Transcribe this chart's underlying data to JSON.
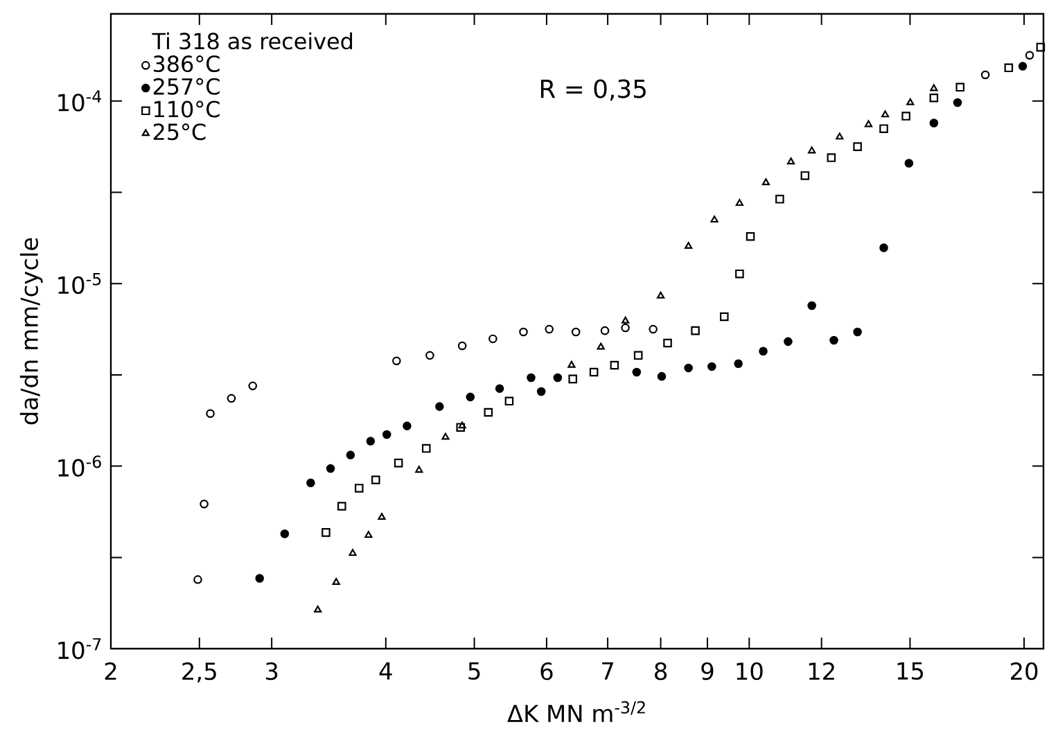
{
  "chart_data": {
    "type": "scatter",
    "log": "xy",
    "legend": "top left",
    "legend_title": "Ti 318 as received",
    "annotations": [
      "R = 0,35"
    ],
    "xlabel": "ΔK MN m$^{-3/2}$",
    "ylabel": "da/dn mm/cycle",
    "xlim": [
      2,
      21
    ],
    "ylim": [
      1e-07,
      0.0003
    ],
    "xticks": [
      2,
      {
        "value": 2.5,
        "label": "2,5"
      },
      3,
      4,
      5,
      6,
      7,
      8,
      9,
      10,
      12,
      15,
      20
    ],
    "yticks": [
      {
        "value": 1e-07,
        "label": "10$^{-7}$"
      },
      {
        "value": 3.16e-07,
        "label": null
      },
      {
        "value": 1e-06,
        "label": "10$^{-6}$"
      },
      {
        "value": 3.16e-06,
        "label": null
      },
      {
        "value": 1e-05,
        "label": "10$^{-5}$"
      },
      {
        "value": 3.16e-05,
        "label": null
      },
      {
        "value": 0.0001,
        "label": "10$^{-4}$"
      }
    ],
    "series": [
      {
        "name": "386°C",
        "color": "#000000",
        "marker": "circle",
        "x": [
          2.49,
          2.53,
          2.57,
          2.71,
          2.86,
          4.11,
          4.47,
          4.85,
          5.24,
          5.66,
          6.04,
          6.46,
          6.95,
          7.32,
          7.85,
          18.14,
          20.28
        ],
        "values": [
          2.39e-07,
          6.2e-07,
          1.94e-06,
          2.35e-06,
          2.75e-06,
          3.77e-06,
          4.04e-06,
          4.56e-06,
          4.98e-06,
          5.43e-06,
          5.62e-06,
          5.43e-06,
          5.52e-06,
          5.72e-06,
          5.62e-06,
          0.000139,
          0.000178
        ]
      },
      {
        "name": "257°C",
        "color": "#000000",
        "marker": "filled circle",
        "x": [
          2.91,
          3.1,
          3.31,
          3.48,
          3.66,
          3.85,
          4.01,
          4.22,
          4.58,
          4.95,
          5.33,
          5.77,
          5.92,
          6.17,
          7.53,
          8.02,
          8.58,
          9.1,
          9.73,
          10.36,
          11.03,
          11.71,
          12.38,
          13.14,
          14.04,
          14.96,
          15.93,
          16.91,
          19.93
        ],
        "values": [
          2.43e-07,
          4.26e-07,
          8.1e-07,
          9.7e-07,
          1.15e-06,
          1.37e-06,
          1.49e-06,
          1.66e-06,
          2.12e-06,
          2.39e-06,
          2.66e-06,
          3.05e-06,
          2.56e-06,
          3.05e-06,
          3.27e-06,
          3.1e-06,
          3.45e-06,
          3.51e-06,
          3.64e-06,
          4.26e-06,
          4.81e-06,
          7.57e-06,
          4.89e-06,
          5.43e-06,
          1.57e-05,
          4.56e-05,
          7.57e-05,
          9.8e-05,
          0.000155
        ]
      },
      {
        "name": "110°C",
        "color": "#000000",
        "marker": "square",
        "x": [
          3.44,
          3.58,
          3.74,
          3.9,
          4.13,
          4.43,
          4.83,
          5.18,
          5.46,
          6.41,
          6.76,
          7.12,
          7.56,
          8.14,
          8.73,
          9.39,
          9.76,
          10.03,
          10.8,
          11.51,
          12.3,
          13.14,
          14.04,
          14.85,
          15.93,
          17.02,
          19.24,
          20.85
        ],
        "values": [
          4.33e-07,
          6.03e-07,
          7.57e-07,
          8.4e-07,
          1.04e-06,
          1.25e-06,
          1.63e-06,
          1.97e-06,
          2.27e-06,
          3e-06,
          3.27e-06,
          3.57e-06,
          4.04e-06,
          4.72e-06,
          5.52e-06,
          6.58e-06,
          1.13e-05,
          1.81e-05,
          2.9e-05,
          3.9e-05,
          4.89e-05,
          5.62e-05,
          7.05e-05,
          8.26e-05,
          0.000104,
          0.000119,
          0.000152,
          0.000197
        ]
      },
      {
        "name": "25°C",
        "color": "#000000",
        "marker": "triangle",
        "x": [
          3.37,
          3.53,
          3.68,
          3.83,
          3.96,
          4.35,
          4.65,
          4.85,
          6.39,
          6.88,
          7.32,
          8.0,
          8.58,
          9.16,
          9.76,
          10.43,
          11.11,
          11.71,
          12.56,
          13.51,
          14.09,
          15.01,
          15.93
        ],
        "values": [
          1.63e-07,
          2.31e-07,
          3.33e-07,
          4.18e-07,
          5.25e-07,
          9.5e-07,
          1.44e-06,
          1.66e-06,
          3.57e-06,
          4.49e-06,
          6.24e-06,
          8.55e-06,
          1.6e-05,
          2.23e-05,
          2.75e-05,
          3.57e-05,
          4.64e-05,
          5.33e-05,
          6.35e-05,
          7.43e-05,
          8.4e-05,
          9.8e-05,
          0.000117
        ]
      }
    ]
  }
}
